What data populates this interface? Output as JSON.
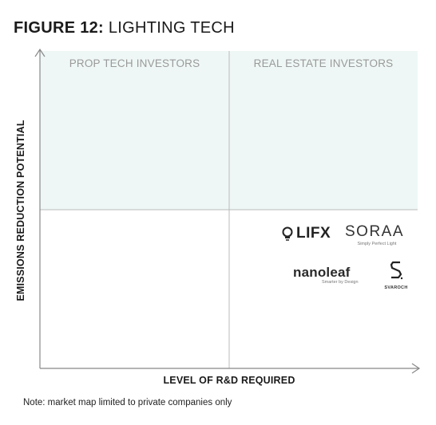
{
  "figure": {
    "title_bold": "FIGURE 12:",
    "title_rest": " LIGHTING TECH"
  },
  "axes": {
    "x_label": "LEVEL OF R&D REQUIRED",
    "y_label": "EMISSIONS REDUCTION POTENTIAL"
  },
  "quadrants": {
    "top_left": "PROP TECH INVESTORS",
    "top_right": "REAL ESTATE INVESTORS",
    "fill_color": "#eef7f5"
  },
  "companies": [
    {
      "name": "LIFX",
      "quadrant": "bottom-right"
    },
    {
      "name": "SORAA",
      "tagline": "Simply Perfect Light",
      "quadrant": "bottom-right"
    },
    {
      "name": "nanoleaf",
      "tagline": "Smarter by Design",
      "quadrant": "bottom-right"
    },
    {
      "name": "SVAROCH",
      "quadrant": "bottom-right"
    }
  ],
  "note": "Note: market map limited to private companies only",
  "colors": {
    "axis": "#888888",
    "divider": "#bbbbbb",
    "text": "#1a1a1a"
  }
}
